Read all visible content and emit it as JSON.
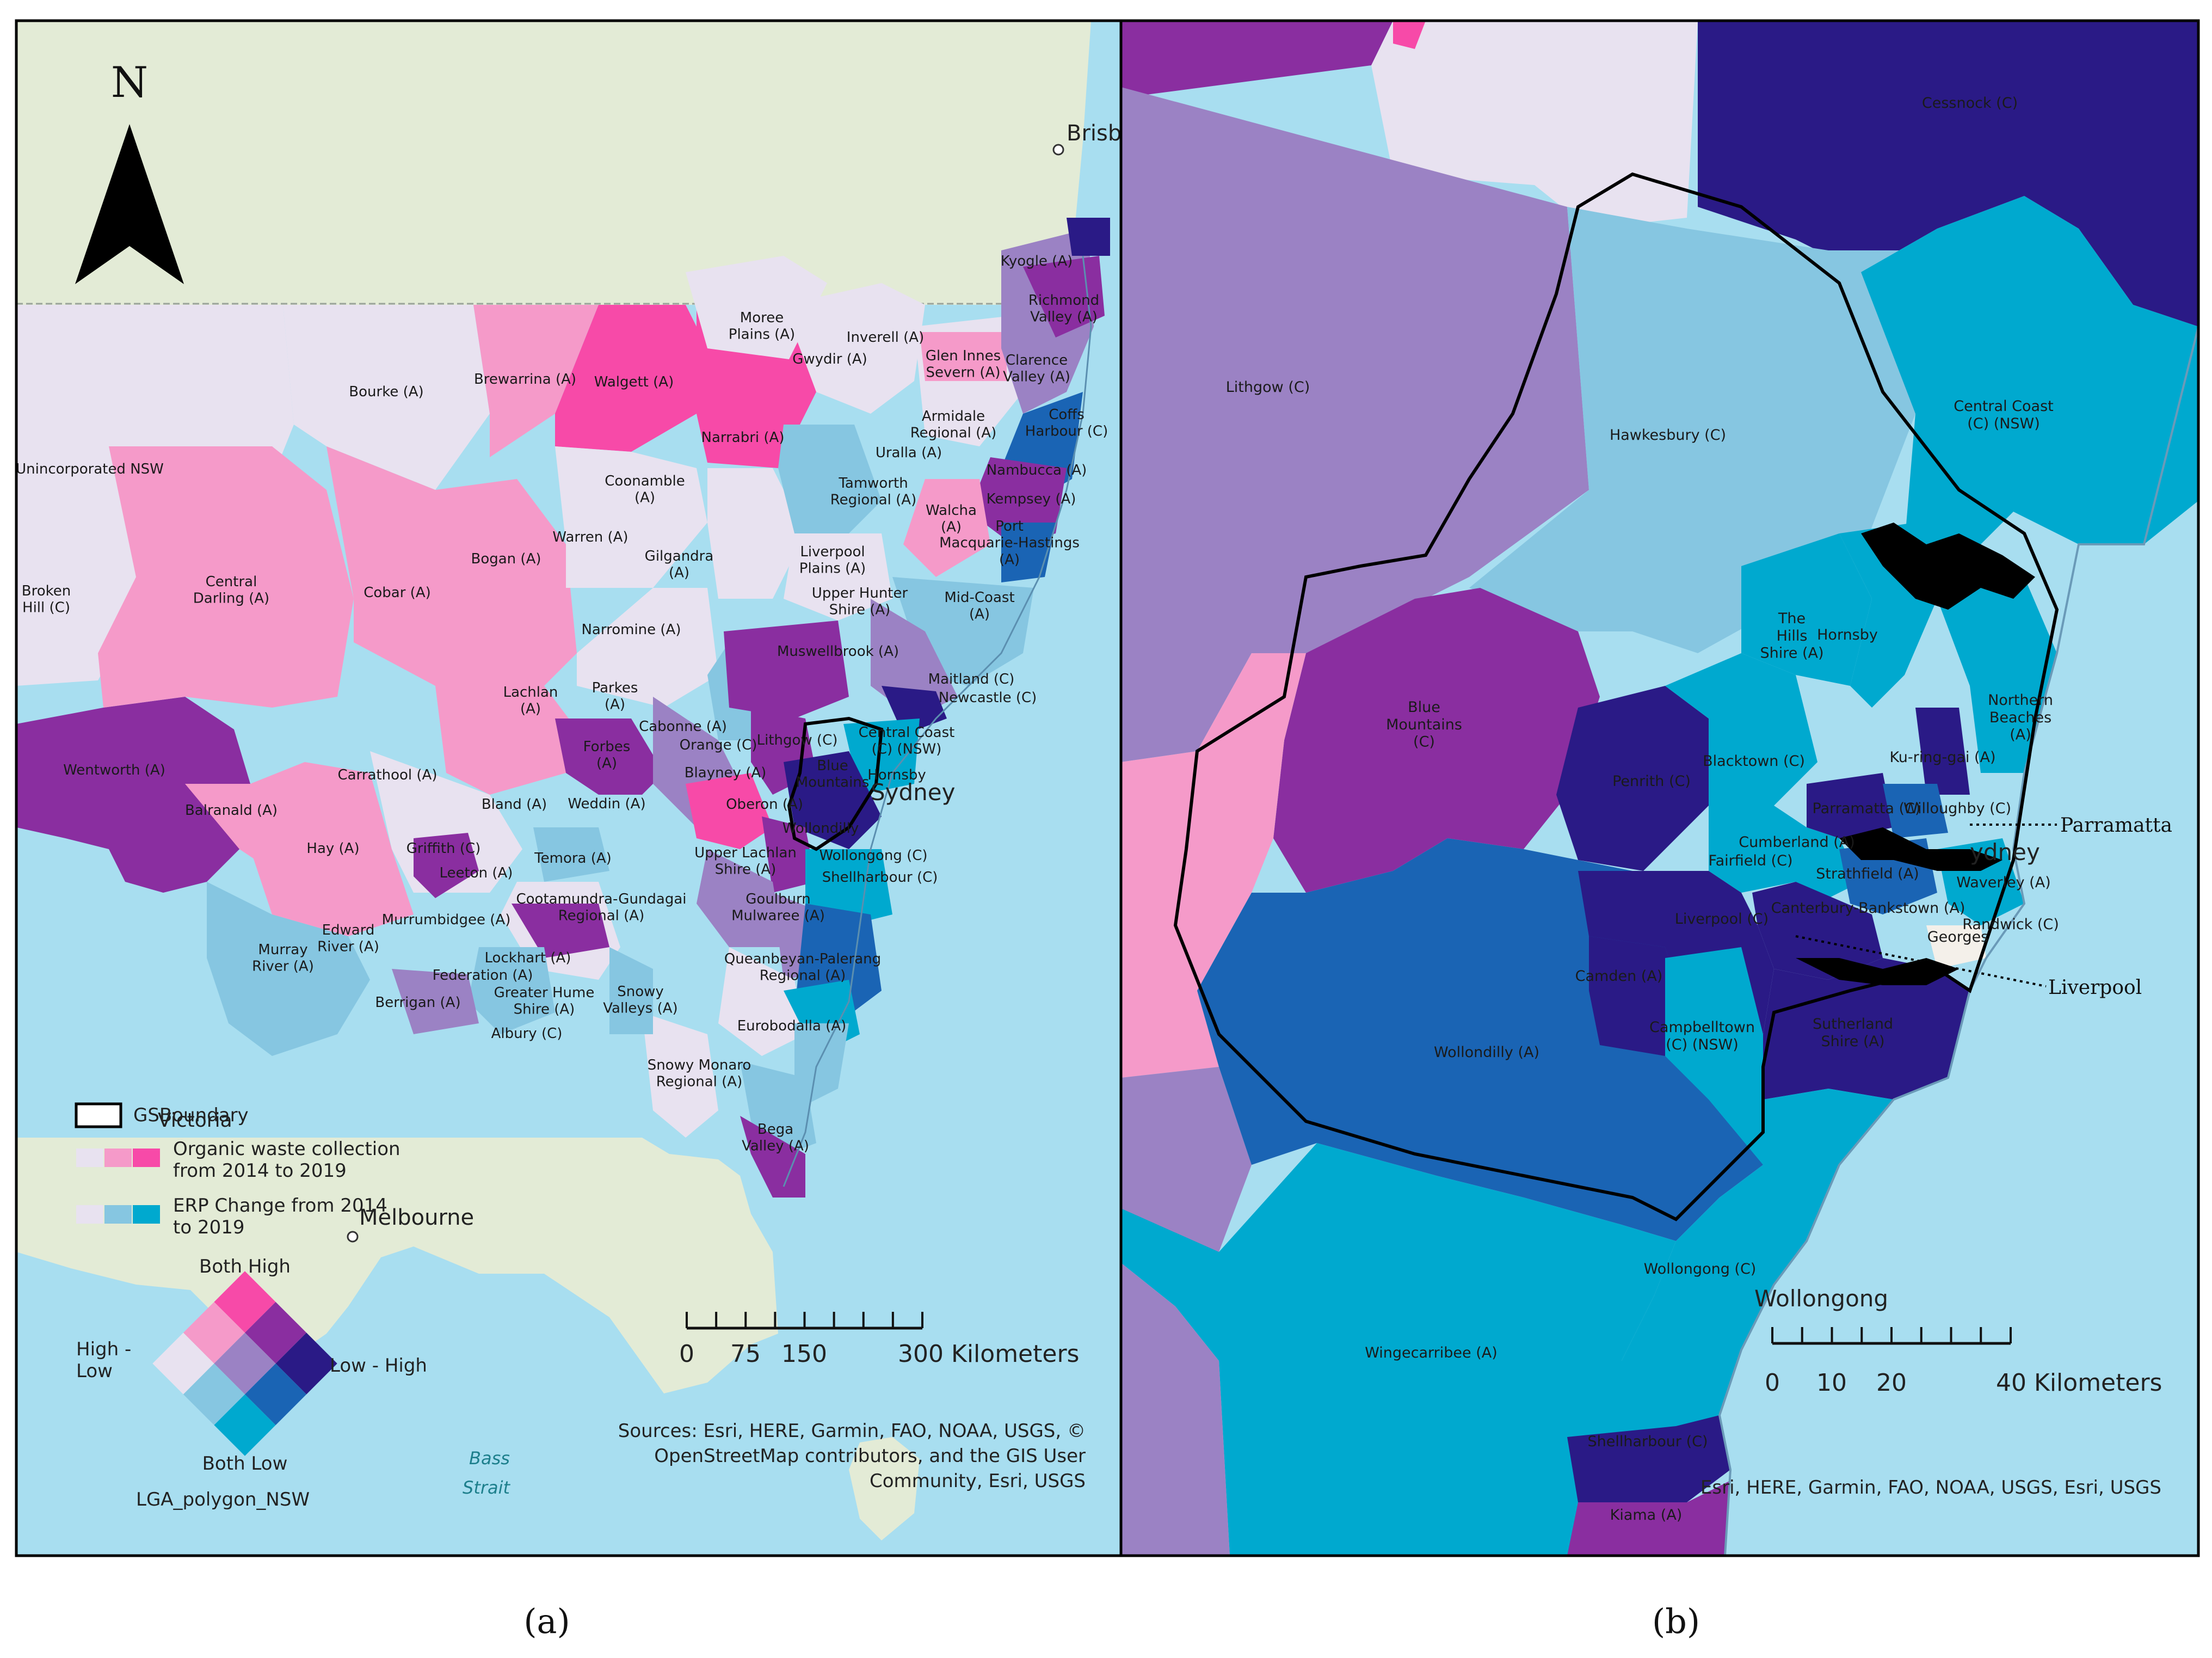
{
  "panel_a": {
    "caption": "(a)",
    "north_label": "N",
    "cities": {
      "brisbane": "Brisb",
      "sydney": "Sydney",
      "melbourne": "Melbourne",
      "victoria": "Victoria"
    },
    "water_labels": {
      "strait1": "Bass",
      "strait2": "Strait"
    },
    "lga_labels": [
      "Kyogle (A)",
      "Richmond\nValley (A)",
      "Moree\nPlains (A)",
      "Inverell (A)",
      "Glen Innes\nSevern (A)",
      "Clarence\nValley (A)",
      "Gwydir (A)",
      "Bourke (A)",
      "Brewarrina (A)",
      "Walgett (A)",
      "Narrabri (A)",
      "Armidale\nRegional (A)",
      "Coffs\nHarbour (C)",
      "Uralla (A)",
      "Unincorporated NSW",
      "Coonamble\n(A)",
      "Tamworth\nRegional (A)",
      "Nambucca (A)",
      "Kempsey (A)",
      "Walcha\n(A)",
      "Port\nMacquarie-Hastings\n(A)",
      "Warren (A)",
      "Bogan (A)",
      "Gilgandra\n(A)",
      "Liverpool\nPlains (A)",
      "Broken\nHill (C)",
      "Central\nDarling (A)",
      "Cobar (A)",
      "Upper Hunter\nShire (A)",
      "Mid-Coast\n(A)",
      "Narromine (A)",
      "Muswellbrook (A)",
      "Maitland (C)",
      "Newcastle (C)",
      "Lachlan\n(A)",
      "Parkes\n(A)",
      "Cabonne (A)",
      "Orange (C)",
      "Lithgow (C)",
      "Central Coast\n(C) (NSW)",
      "Wentworth (A)",
      "Forbes\n(A)",
      "Carrathool (A)",
      "Blayney (A)",
      "Blue\nMountains",
      "Hornsby",
      "Weddin (A)",
      "Bland (A)",
      "Oberon (A)",
      "Balranald (A)",
      "Wollondilly",
      "Hay (A)",
      "Griffith (C)",
      "Temora (A)",
      "Upper Lachlan\nShire (A)",
      "Wollongong (C)",
      "Leeton (A)",
      "Shellharbour (C)",
      "Cootamundra-Gundagai\nRegional (A)",
      "Goulburn\nMulwaree (A)",
      "Murrumbidgee (A)",
      "Edward\nRiver (A)",
      "Murray\nRiver (A)",
      "Lockhart (A)",
      "Queanbeyan-Palerang\nRegional (A)",
      "Federation (A)",
      "Greater Hume\nShire (A)",
      "Berrigan (A)",
      "Snowy\nValleys (A)",
      "Albury (C)",
      "Eurobodalla (A)",
      "Snowy Monaro\nRegional (A)",
      "Bega\nValley (A)"
    ],
    "legend": {
      "boundary_label": "GSBoundary",
      "organic_label": "Organic waste collection\nfrom 2014 to 2019",
      "erp_label": "ERP Change  from 2014\nto 2019",
      "both_high": "Both High",
      "high_low": "High -\nLow",
      "low_high": "Low - High",
      "both_low": "Both Low",
      "layer_name": "LGA_polygon_NSW"
    },
    "scale": {
      "ticks": [
        "0",
        "75",
        "150",
        "300 Kilometers"
      ]
    },
    "sources": "Sources: Esri, HERE, Garmin, FAO, NOAA, USGS, ©\nOpenStreetMap contributors, and the GIS User\nCommunity, Esri, USGS"
  },
  "panel_b": {
    "caption": "(b)",
    "cities": {
      "sydney": "ydney",
      "wollongong": "Wollongong"
    },
    "lga_labels": [
      "Cessnock (C)",
      "Lithgow (C)",
      "Hawkesbury (C)",
      "Central Coast\n(C) (NSW)",
      "The\nHills\nShire (A)",
      "Hornsby",
      "Northern\nBeaches\n(A)",
      "Ku-ring-gai (A)",
      "Blue\nMountains\n(C)",
      "Penrith (C)",
      "Blacktown (C)",
      "Parramatta (C)",
      "Willoughby (C)",
      "Cumberland (A)",
      "Fairfield (C)",
      "Strathfield (A)",
      "Waverley (A)",
      "Liverpool (C)",
      "Canterbury-Bankstown (A)",
      "Georges",
      "Randwick (C)",
      "Camden (A)",
      "Campbelltown\n(C) (NSW)",
      "Sutherland\nShire (A)",
      "Wollondilly (A)",
      "Wollongong (C)",
      "Wingecarribee (A)",
      "Shellharbour (C)",
      "Kiama (A)"
    ],
    "callouts": {
      "parramatta": "Parramatta",
      "liverpool": "Liverpool"
    },
    "scale": {
      "ticks": [
        "0",
        "10",
        "20",
        "40 Kilometers"
      ]
    },
    "sources": "Esri, HERE, Garmin, FAO, NOAA, USGS, Esri, USGS"
  },
  "colors": {
    "ocean": "#a8def0",
    "land": "#e3ebd6",
    "both_high": "#2a1a86",
    "deep_purple": "#8a2ea0",
    "hot_pink": "#f74aa8",
    "light_pink": "#f59ac9",
    "lavender": "#e8e2f0",
    "mauve": "#9b82c4",
    "light_blue": "#86c6e1",
    "teal": "#00a9cf",
    "navy": "#1a64b4"
  }
}
